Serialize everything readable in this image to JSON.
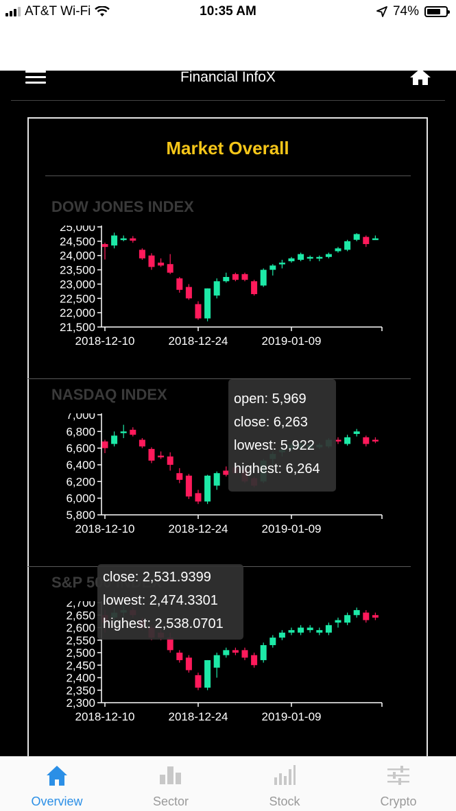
{
  "status_bar": {
    "carrier": "AT&T Wi-Fi",
    "time": "10:35 AM",
    "battery": "74%",
    "battery_level": 0.74,
    "icons": [
      "signal-icon",
      "wifi-icon",
      "location-arrow-icon",
      "battery-icon"
    ]
  },
  "header": {
    "title": "Financial InfoX",
    "menu_icon": "menu-icon",
    "home_icon": "home-icon"
  },
  "card": {
    "title": "Market Overall"
  },
  "colors": {
    "up": "#1de9a7",
    "down": "#ff1a5b",
    "title_accent": "#f6c619",
    "tab_active": "#2b8fe6",
    "tab_inactive": "#9a9a9a"
  },
  "sections": [
    {
      "title": "DOW JONES INDEX",
      "chart_data": {
        "type": "candlestick",
        "title": "DOW JONES INDEX",
        "x_ticks": [
          "2018-12-10",
          "2018-12-24",
          "2019-01-09"
        ],
        "tick_indices": [
          0,
          10,
          20
        ],
        "y_ticks": [
          "25,000",
          "24,500",
          "24,000",
          "23,500",
          "23,000",
          "22,500",
          "22,000",
          "21,500"
        ],
        "ylim": [
          21500,
          25000
        ],
        "candles": [
          {
            "o": 24400,
            "c": 24300,
            "l": 23860,
            "h": 24450
          },
          {
            "o": 24350,
            "c": 24700,
            "l": 24250,
            "h": 24800
          },
          {
            "o": 24600,
            "c": 24600,
            "l": 24500,
            "h": 24700
          },
          {
            "o": 24600,
            "c": 24520,
            "l": 24450,
            "h": 24680
          },
          {
            "o": 24200,
            "c": 23900,
            "l": 23850,
            "h": 24250
          },
          {
            "o": 24000,
            "c": 23600,
            "l": 23500,
            "h": 24080
          },
          {
            "o": 23750,
            "c": 23650,
            "l": 23600,
            "h": 23900
          },
          {
            "o": 23700,
            "c": 23400,
            "l": 23350,
            "h": 24050
          },
          {
            "o": 23200,
            "c": 22800,
            "l": 22700,
            "h": 23250
          },
          {
            "o": 22900,
            "c": 22500,
            "l": 22450,
            "h": 23000
          },
          {
            "o": 22300,
            "c": 21800,
            "l": 21750,
            "h": 22400
          },
          {
            "o": 21800,
            "c": 22850,
            "l": 21700,
            "h": 22850
          },
          {
            "o": 22600,
            "c": 23100,
            "l": 22500,
            "h": 23200
          },
          {
            "o": 23100,
            "c": 23250,
            "l": 23050,
            "h": 23400
          },
          {
            "o": 23350,
            "c": 23150,
            "l": 23100,
            "h": 23400
          },
          {
            "o": 23350,
            "c": 23150,
            "l": 23100,
            "h": 23400
          },
          {
            "o": 23100,
            "c": 22650,
            "l": 22600,
            "h": 23150
          },
          {
            "o": 22950,
            "c": 23500,
            "l": 22900,
            "h": 23550
          },
          {
            "o": 23500,
            "c": 23650,
            "l": 23300,
            "h": 23700
          },
          {
            "o": 23700,
            "c": 23750,
            "l": 23550,
            "h": 23850
          },
          {
            "o": 23800,
            "c": 23900,
            "l": 23750,
            "h": 23950
          },
          {
            "o": 23850,
            "c": 24050,
            "l": 23800,
            "h": 24100
          },
          {
            "o": 23900,
            "c": 23950,
            "l": 23800,
            "h": 24000
          },
          {
            "o": 23900,
            "c": 23950,
            "l": 23800,
            "h": 24000
          },
          {
            "o": 23950,
            "c": 24050,
            "l": 23900,
            "h": 24100
          },
          {
            "o": 24150,
            "c": 24250,
            "l": 24100,
            "h": 24300
          },
          {
            "o": 24200,
            "c": 24500,
            "l": 24150,
            "h": 24550
          },
          {
            "o": 24550,
            "c": 24750,
            "l": 24500,
            "h": 24780
          },
          {
            "o": 24650,
            "c": 24400,
            "l": 24300,
            "h": 24700
          },
          {
            "o": 24600,
            "c": 24600,
            "l": 24550,
            "h": 24700
          }
        ]
      }
    },
    {
      "title": "NASDAQ INDEX",
      "chart_data": {
        "type": "candlestick",
        "title": "NASDAQ INDEX",
        "x_ticks": [
          "2018-12-10",
          "2018-12-24",
          "2019-01-09"
        ],
        "tick_indices": [
          0,
          10,
          20
        ],
        "y_ticks": [
          "7,000",
          "6,800",
          "6,600",
          "6,400",
          "6,200",
          "6,000",
          "5,800"
        ],
        "ylim": [
          5800,
          7000
        ],
        "candles": [
          {
            "o": 6680,
            "c": 6600,
            "l": 6540,
            "h": 6700
          },
          {
            "o": 6650,
            "c": 6750,
            "l": 6620,
            "h": 6800
          },
          {
            "o": 6780,
            "c": 6800,
            "l": 6720,
            "h": 6880
          },
          {
            "o": 6820,
            "c": 6760,
            "l": 6740,
            "h": 6850
          },
          {
            "o": 6700,
            "c": 6620,
            "l": 6600,
            "h": 6720
          },
          {
            "o": 6590,
            "c": 6450,
            "l": 6420,
            "h": 6610
          },
          {
            "o": 6510,
            "c": 6490,
            "l": 6470,
            "h": 6560
          },
          {
            "o": 6500,
            "c": 6400,
            "l": 6330,
            "h": 6550
          },
          {
            "o": 6300,
            "c": 6220,
            "l": 6180,
            "h": 6360
          },
          {
            "o": 6270,
            "c": 6020,
            "l": 5990,
            "h": 6290
          },
          {
            "o": 6060,
            "c": 5960,
            "l": 5930,
            "h": 6100
          },
          {
            "o": 5960,
            "c": 6270,
            "l": 5930,
            "h": 6280
          },
          {
            "o": 6150,
            "c": 6300,
            "l": 6100,
            "h": 6320
          },
          {
            "o": 6330,
            "c": 6280,
            "l": 6260,
            "h": 6380
          },
          {
            "o": 6369,
            "c": 6300,
            "l": 6290,
            "h": 6380
          },
          {
            "o": 6340,
            "c": 6200,
            "l": 6180,
            "h": 6360
          },
          {
            "o": 6240,
            "c": 6150,
            "l": 6130,
            "h": 6260
          },
          {
            "o": 6200,
            "c": 6450,
            "l": 6180,
            "h": 6470
          },
          {
            "o": 6470,
            "c": 6530,
            "l": 6400,
            "h": 6560
          },
          {
            "o": 6550,
            "c": 6580,
            "l": 6500,
            "h": 6620
          },
          {
            "o": 6590,
            "c": 6640,
            "l": 6560,
            "h": 6660
          },
          {
            "o": 6600,
            "c": 6650,
            "l": 6580,
            "h": 6680
          },
          {
            "o": 6600,
            "c": 6640,
            "l": 6580,
            "h": 6660
          },
          {
            "o": 6610,
            "c": 6640,
            "l": 6590,
            "h": 6660
          },
          {
            "o": 6620,
            "c": 6700,
            "l": 6600,
            "h": 6720
          },
          {
            "o": 6700,
            "c": 6680,
            "l": 6650,
            "h": 6730
          },
          {
            "o": 6650,
            "c": 6730,
            "l": 6630,
            "h": 6760
          },
          {
            "o": 6770,
            "c": 6800,
            "l": 6740,
            "h": 6830
          },
          {
            "o": 6730,
            "c": 6650,
            "l": 6620,
            "h": 6750
          },
          {
            "o": 6700,
            "c": 6680,
            "l": 6660,
            "h": 6730
          }
        ]
      },
      "tooltip": {
        "lines": [
          "open: 5,969",
          "close: 6,263",
          "lowest: 5,922",
          "highest: 6,264"
        ]
      }
    },
    {
      "title": "S&P 500 INDEX",
      "chart_data": {
        "type": "candlestick",
        "title": "S&P 500 INDEX",
        "x_ticks": [
          "2018-12-10",
          "2018-12-24",
          "2019-01-09"
        ],
        "tick_indices": [
          0,
          10,
          20
        ],
        "y_ticks": [
          "2,700",
          "2,650",
          "2,600",
          "2,550",
          "2,500",
          "2,450",
          "2,400",
          "2,350",
          "2,300"
        ],
        "ylim": [
          2300,
          2700
        ],
        "candles": [
          {
            "o": 2650,
            "c": 2620,
            "l": 2580,
            "h": 2670
          },
          {
            "o": 2640,
            "c": 2660,
            "l": 2620,
            "h": 2680
          },
          {
            "o": 2660,
            "c": 2670,
            "l": 2640,
            "h": 2690
          },
          {
            "o": 2670,
            "c": 2650,
            "l": 2640,
            "h": 2680
          },
          {
            "o": 2630,
            "c": 2600,
            "l": 2590,
            "h": 2640
          },
          {
            "o": 2600,
            "c": 2560,
            "l": 2550,
            "h": 2610
          },
          {
            "o": 2580,
            "c": 2560,
            "l": 2550,
            "h": 2590
          },
          {
            "o": 2560,
            "c": 2510,
            "l": 2500,
            "h": 2580
          },
          {
            "o": 2500,
            "c": 2470,
            "l": 2460,
            "h": 2510
          },
          {
            "o": 2480,
            "c": 2430,
            "l": 2420,
            "h": 2490
          },
          {
            "o": 2410,
            "c": 2360,
            "l": 2350,
            "h": 2420
          },
          {
            "o": 2360,
            "c": 2470,
            "l": 2350,
            "h": 2470
          },
          {
            "o": 2440,
            "c": 2490,
            "l": 2400,
            "h": 2500
          },
          {
            "o": 2490,
            "c": 2510,
            "l": 2480,
            "h": 2520
          },
          {
            "o": 2510,
            "c": 2500,
            "l": 2490,
            "h": 2520
          },
          {
            "o": 2510,
            "c": 2480,
            "l": 2470,
            "h": 2520
          },
          {
            "o": 2490,
            "c": 2450,
            "l": 2440,
            "h": 2500
          },
          {
            "o": 2470,
            "c": 2530,
            "l": 2460,
            "h": 2540
          },
          {
            "o": 2530,
            "c": 2560,
            "l": 2520,
            "h": 2570
          },
          {
            "o": 2560,
            "c": 2580,
            "l": 2550,
            "h": 2590
          },
          {
            "o": 2580,
            "c": 2590,
            "l": 2570,
            "h": 2600
          },
          {
            "o": 2580,
            "c": 2600,
            "l": 2570,
            "h": 2610
          },
          {
            "o": 2590,
            "c": 2600,
            "l": 2580,
            "h": 2610
          },
          {
            "o": 2580,
            "c": 2590,
            "l": 2570,
            "h": 2600
          },
          {
            "o": 2580,
            "c": 2610,
            "l": 2570,
            "h": 2620
          },
          {
            "o": 2620,
            "c": 2630,
            "l": 2600,
            "h": 2640
          },
          {
            "o": 2620,
            "c": 2650,
            "l": 2610,
            "h": 2660
          },
          {
            "o": 2650,
            "c": 2670,
            "l": 2640,
            "h": 2680
          },
          {
            "o": 2660,
            "c": 2630,
            "l": 2620,
            "h": 2670
          },
          {
            "o": 2650,
            "c": 2640,
            "l": 2630,
            "h": 2660
          }
        ]
      },
      "tooltip": {
        "lines": [
          "close: 2,531.9399",
          "lowest: 2,474.3301",
          "highest: 2,538.0701"
        ]
      }
    }
  ],
  "tabs": [
    {
      "label": "Overview",
      "icon": "home-icon",
      "active": true
    },
    {
      "label": "Sector",
      "icon": "bar-chart-icon",
      "active": false
    },
    {
      "label": "Stock",
      "icon": "stock-bars-icon",
      "active": false
    },
    {
      "label": "Crypto",
      "icon": "sliders-icon",
      "active": false
    }
  ]
}
